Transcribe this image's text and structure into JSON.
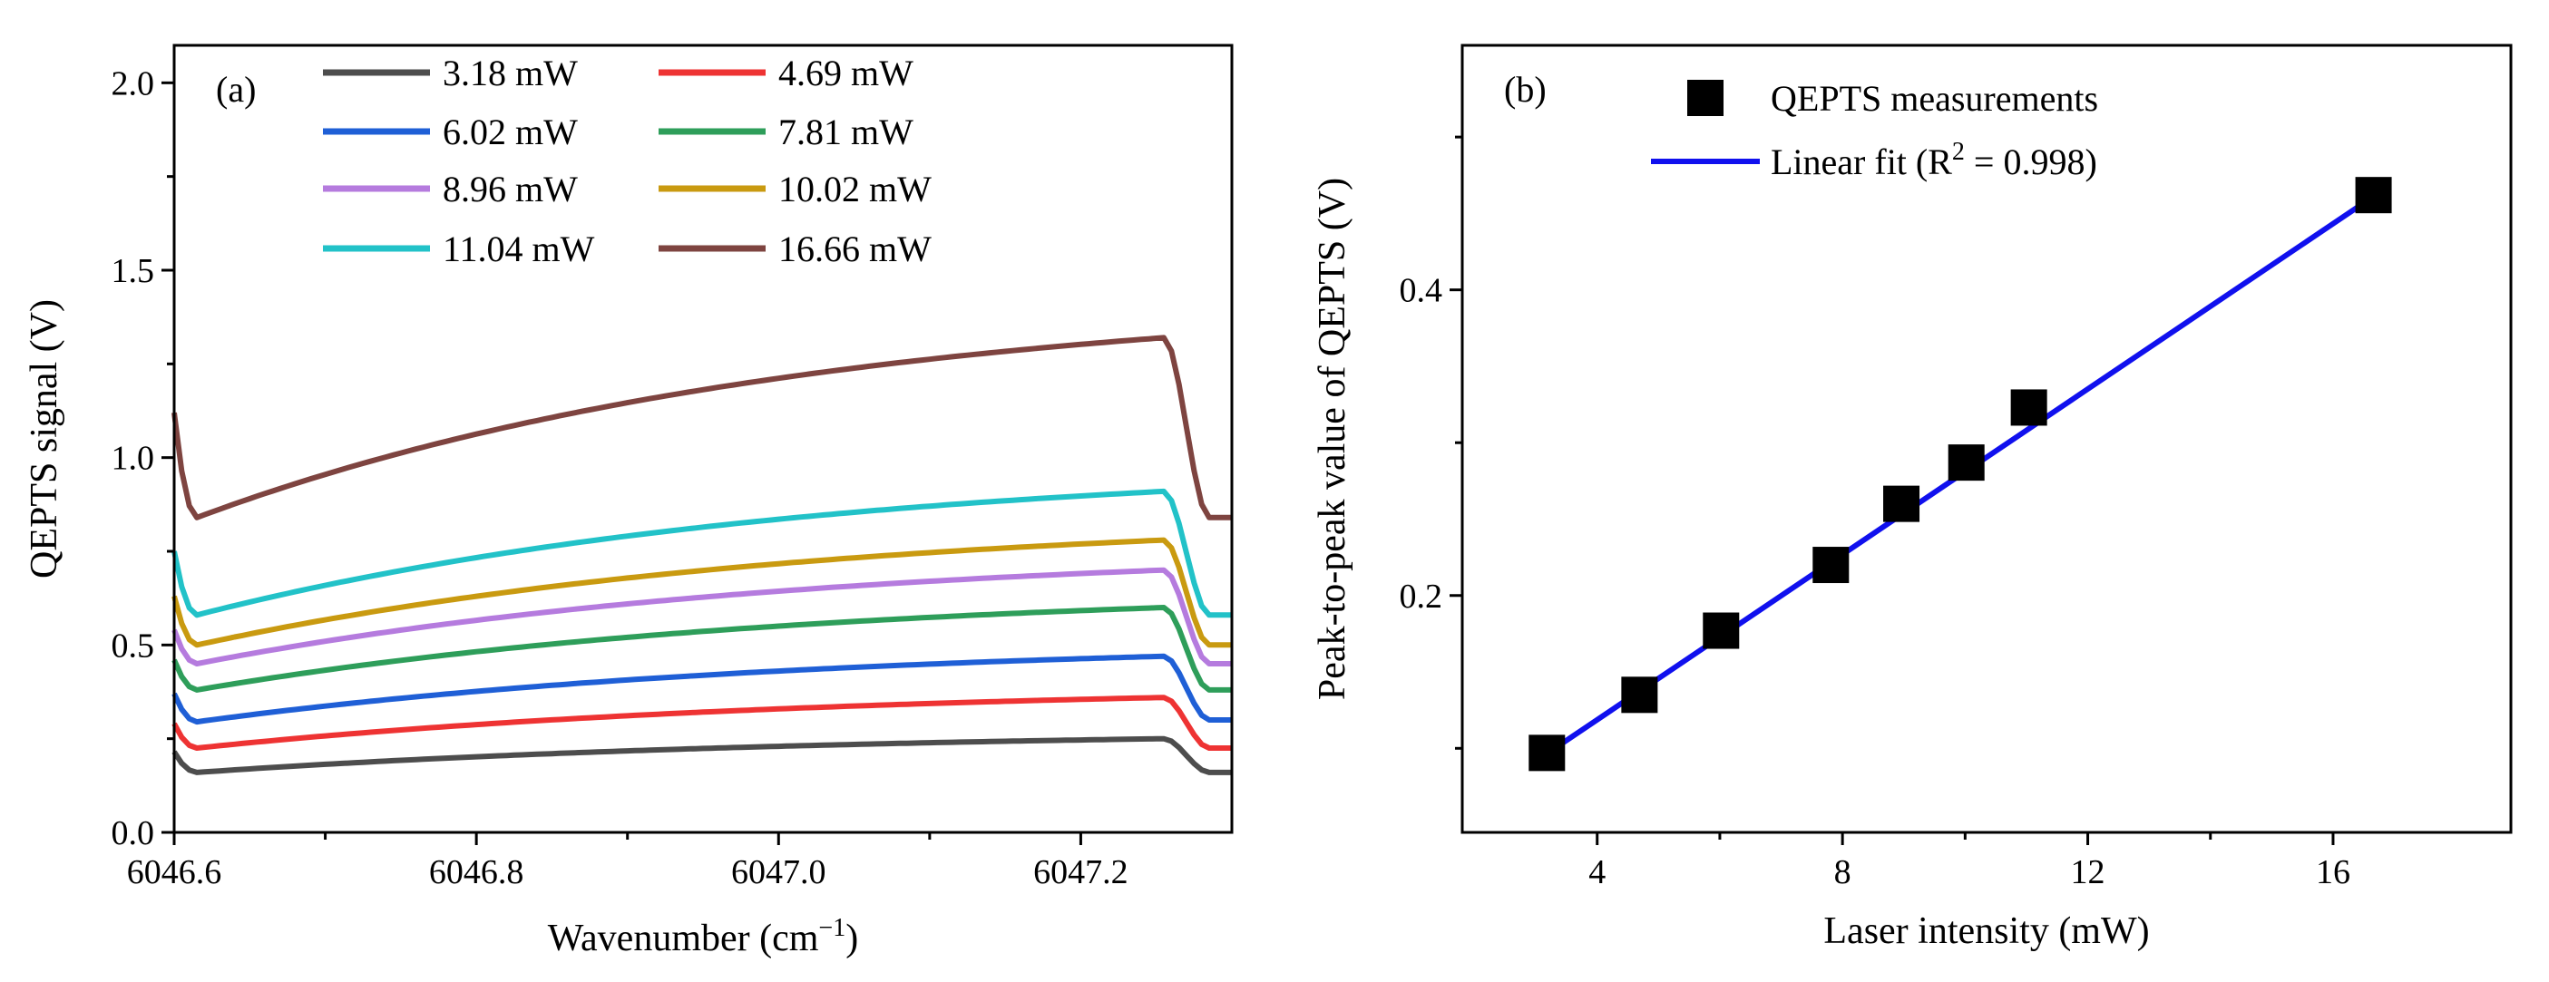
{
  "chart_data": [
    {
      "panel": "(a)",
      "type": "line",
      "xlabel": "Wavenumber (cm",
      "xlabel_sup": "−1",
      "xlabel_end": ")",
      "ylabel": "QEPTS signal  (V)",
      "xlim": [
        6046.6,
        6047.3
      ],
      "ylim": [
        0.0,
        2.1
      ],
      "xticks": [
        6046.6,
        6046.8,
        6047.0,
        6047.2
      ],
      "xtick_labels": [
        "6046.6",
        "6046.8",
        "6047.0",
        "6047.2"
      ],
      "yticks": [
        0.0,
        0.5,
        1.0,
        1.5,
        2.0
      ],
      "ytick_labels": [
        "0.0",
        "0.5",
        "1.0",
        "1.5",
        "2.0"
      ],
      "legend_position": "top",
      "series": [
        {
          "name": "3.18 mW",
          "color": "#4d4d4d",
          "start": 0.215,
          "min": 0.16,
          "max": 0.25,
          "end": 0.16
        },
        {
          "name": "4.69 mW",
          "color": "#ee3333",
          "start": 0.29,
          "min": 0.225,
          "max": 0.36,
          "end": 0.225
        },
        {
          "name": "6.02 mW",
          "color": "#1f5fd6",
          "start": 0.37,
          "min": 0.295,
          "max": 0.47,
          "end": 0.3
        },
        {
          "name": "7.81 mW",
          "color": "#2e9e5a",
          "start": 0.46,
          "min": 0.38,
          "max": 0.6,
          "end": 0.38
        },
        {
          "name": "8.96 mW",
          "color": "#b57bde",
          "start": 0.54,
          "min": 0.45,
          "max": 0.7,
          "end": 0.45
        },
        {
          "name": "10.02 mW",
          "color": "#c99a10",
          "start": 0.63,
          "min": 0.5,
          "max": 0.78,
          "end": 0.5
        },
        {
          "name": "11.04 mW",
          "color": "#22c2c8",
          "start": 0.75,
          "min": 0.58,
          "max": 0.91,
          "end": 0.58
        },
        {
          "name": "16.66 mW",
          "color": "#7e4440",
          "start": 1.12,
          "min": 0.84,
          "max": 1.32,
          "end": 0.84
        }
      ]
    },
    {
      "panel": "(b)",
      "type": "scatter",
      "xlabel": "Laser intensity (mW)",
      "ylabel": "Peak-to-peak value of QEPTS (V)",
      "xlim": [
        1.8,
        18.9
      ],
      "ylim": [
        0.045,
        0.56
      ],
      "xticks": [
        4,
        8,
        12,
        16
      ],
      "xtick_labels": [
        "4",
        "8",
        "12",
        "16"
      ],
      "xminor": [
        6,
        10,
        14
      ],
      "yticks": [
        0.2,
        0.4
      ],
      "ytick_labels": [
        "0.2",
        "0.4"
      ],
      "yminor": [
        0.1,
        0.3,
        0.5
      ],
      "legend_position": "top",
      "series": [
        {
          "name": "QEPTS measurements",
          "color": "#000000",
          "x": [
            3.18,
            4.69,
            6.02,
            7.81,
            8.96,
            10.02,
            11.04,
            16.66
          ],
          "y": [
            0.097,
            0.135,
            0.177,
            0.22,
            0.26,
            0.287,
            0.323,
            0.462
          ]
        }
      ],
      "fit": {
        "name_prefix": "Linear fit (R",
        "name_sup": "2",
        "name_suffix": " = 0.998)",
        "color": "#1010ee",
        "slope": 0.02705,
        "intercept": 0.0105,
        "x_range": [
          3.18,
          16.66
        ]
      }
    }
  ]
}
